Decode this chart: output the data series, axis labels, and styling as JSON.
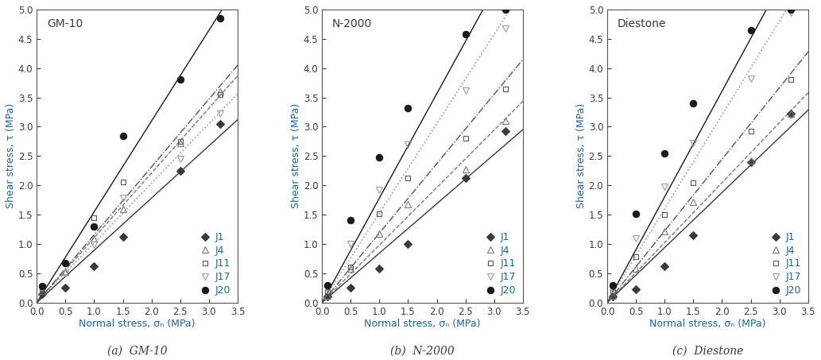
{
  "panels": [
    {
      "title": "GM-10",
      "subtitle": "(a)  GM-10",
      "series": {
        "J1": {
          "x": [
            0.1,
            0.5,
            1.0,
            1.5,
            2.5,
            3.2
          ],
          "y": [
            0.15,
            0.25,
            0.62,
            1.12,
            2.25,
            3.05
          ]
        },
        "J4": {
          "x": [
            0.1,
            0.5,
            1.0,
            1.5,
            2.5,
            3.2
          ],
          "y": [
            0.2,
            0.52,
            1.1,
            1.6,
            2.72,
            3.6
          ]
        },
        "J11": {
          "x": [
            0.1,
            0.5,
            1.0,
            1.5,
            2.5,
            3.2
          ],
          "y": [
            0.22,
            0.68,
            1.45,
            2.06,
            2.75,
            3.55
          ]
        },
        "J17": {
          "x": [
            0.1,
            0.5,
            1.0,
            1.5,
            2.5,
            3.2
          ],
          "y": [
            0.25,
            0.5,
            0.98,
            1.78,
            2.45,
            3.22
          ]
        },
        "J20": {
          "x": [
            0.1,
            0.5,
            1.0,
            1.5,
            2.5,
            3.2
          ],
          "y": [
            0.28,
            0.68,
            1.3,
            2.85,
            3.8,
            4.85
          ]
        }
      },
      "line_order": [
        "J20",
        "J4",
        "J11",
        "J17",
        "J1"
      ]
    },
    {
      "title": "N-2000",
      "subtitle": "(b)  N-2000",
      "series": {
        "J1": {
          "x": [
            0.1,
            0.5,
            1.0,
            1.5,
            2.5,
            3.2
          ],
          "y": [
            0.1,
            0.25,
            0.58,
            1.0,
            2.12,
            2.92
          ]
        },
        "J4": {
          "x": [
            0.1,
            0.5,
            1.0,
            1.5,
            2.5,
            3.2
          ],
          "y": [
            0.12,
            0.58,
            1.18,
            1.68,
            2.28,
            3.1
          ]
        },
        "J11": {
          "x": [
            0.1,
            0.5,
            1.0,
            1.5,
            2.5,
            3.2
          ],
          "y": [
            0.18,
            0.6,
            1.52,
            2.12,
            2.8,
            3.65
          ]
        },
        "J17": {
          "x": [
            0.1,
            0.5,
            1.0,
            1.5,
            2.5,
            3.2
          ],
          "y": [
            0.22,
            1.0,
            1.92,
            2.7,
            3.62,
            4.68
          ]
        },
        "J20": {
          "x": [
            0.1,
            0.5,
            1.0,
            1.5,
            2.5,
            3.2
          ],
          "y": [
            0.3,
            1.4,
            2.48,
            3.32,
            4.58,
            5.0
          ]
        }
      },
      "line_order": [
        "J20",
        "J17",
        "J11",
        "J4",
        "J1"
      ]
    },
    {
      "title": "Diestone",
      "subtitle": "(c)  Diestone",
      "series": {
        "J1": {
          "x": [
            0.1,
            0.5,
            1.0,
            1.5,
            2.5,
            3.2
          ],
          "y": [
            0.1,
            0.22,
            0.62,
            1.15,
            2.4,
            3.22
          ]
        },
        "J4": {
          "x": [
            0.1,
            0.5,
            1.0,
            1.5,
            2.5,
            3.2
          ],
          "y": [
            0.12,
            0.58,
            1.22,
            1.72,
            2.42,
            3.22
          ]
        },
        "J11": {
          "x": [
            0.1,
            0.5,
            1.0,
            1.5,
            2.5,
            3.2
          ],
          "y": [
            0.18,
            0.78,
            1.5,
            2.05,
            2.92,
            3.8
          ]
        },
        "J17": {
          "x": [
            0.1,
            0.5,
            1.0,
            1.5,
            2.5,
            3.2
          ],
          "y": [
            0.22,
            1.1,
            1.98,
            2.72,
            3.82,
            4.95
          ]
        },
        "J20": {
          "x": [
            0.1,
            0.5,
            1.0,
            1.5,
            2.5,
            3.2
          ],
          "y": [
            0.3,
            1.52,
            2.55,
            3.4,
            4.65,
            5.0
          ]
        }
      },
      "line_order": [
        "J20",
        "J17",
        "J11",
        "J4",
        "J1"
      ]
    }
  ],
  "series_styles": {
    "J1": {
      "marker": "D",
      "markersize": 5,
      "color": "#3a3a3a",
      "linestyle": "-",
      "linewidth": 1.0,
      "markerfacecolor": "#3a3a3a"
    },
    "J4": {
      "marker": "^",
      "markersize": 6,
      "color": "#777777",
      "linestyle": "--",
      "linewidth": 1.0,
      "markerfacecolor": "none"
    },
    "J11": {
      "marker": "s",
      "markersize": 5,
      "color": "#555555",
      "linestyle": "-.",
      "linewidth": 1.0,
      "markerfacecolor": "none"
    },
    "J17": {
      "marker": "v",
      "markersize": 6,
      "color": "#999999",
      "linestyle": ":",
      "linewidth": 1.2,
      "markerfacecolor": "none"
    },
    "J20": {
      "marker": "o",
      "markersize": 6,
      "color": "#1a1a1a",
      "linestyle": "-",
      "linewidth": 1.0,
      "markerfacecolor": "#1a1a1a"
    }
  },
  "series_order": [
    "J1",
    "J4",
    "J11",
    "J17",
    "J20"
  ],
  "xlabel": "Normal stress, σₙ (MPa)",
  "ylabel": "Shear stress, τ (MPa)",
  "xlim": [
    0.0,
    3.5
  ],
  "ylim": [
    0.0,
    5.0
  ],
  "xticks": [
    0.0,
    0.5,
    1.0,
    1.5,
    2.0,
    2.5,
    3.0,
    3.5
  ],
  "yticks": [
    0.0,
    0.5,
    1.0,
    1.5,
    2.0,
    2.5,
    3.0,
    3.5,
    4.0,
    4.5,
    5.0
  ],
  "label_color": "#1565C0",
  "text_color": "#3a3a3a",
  "legend_text_color": "#1565C0",
  "background_color": "#ffffff"
}
